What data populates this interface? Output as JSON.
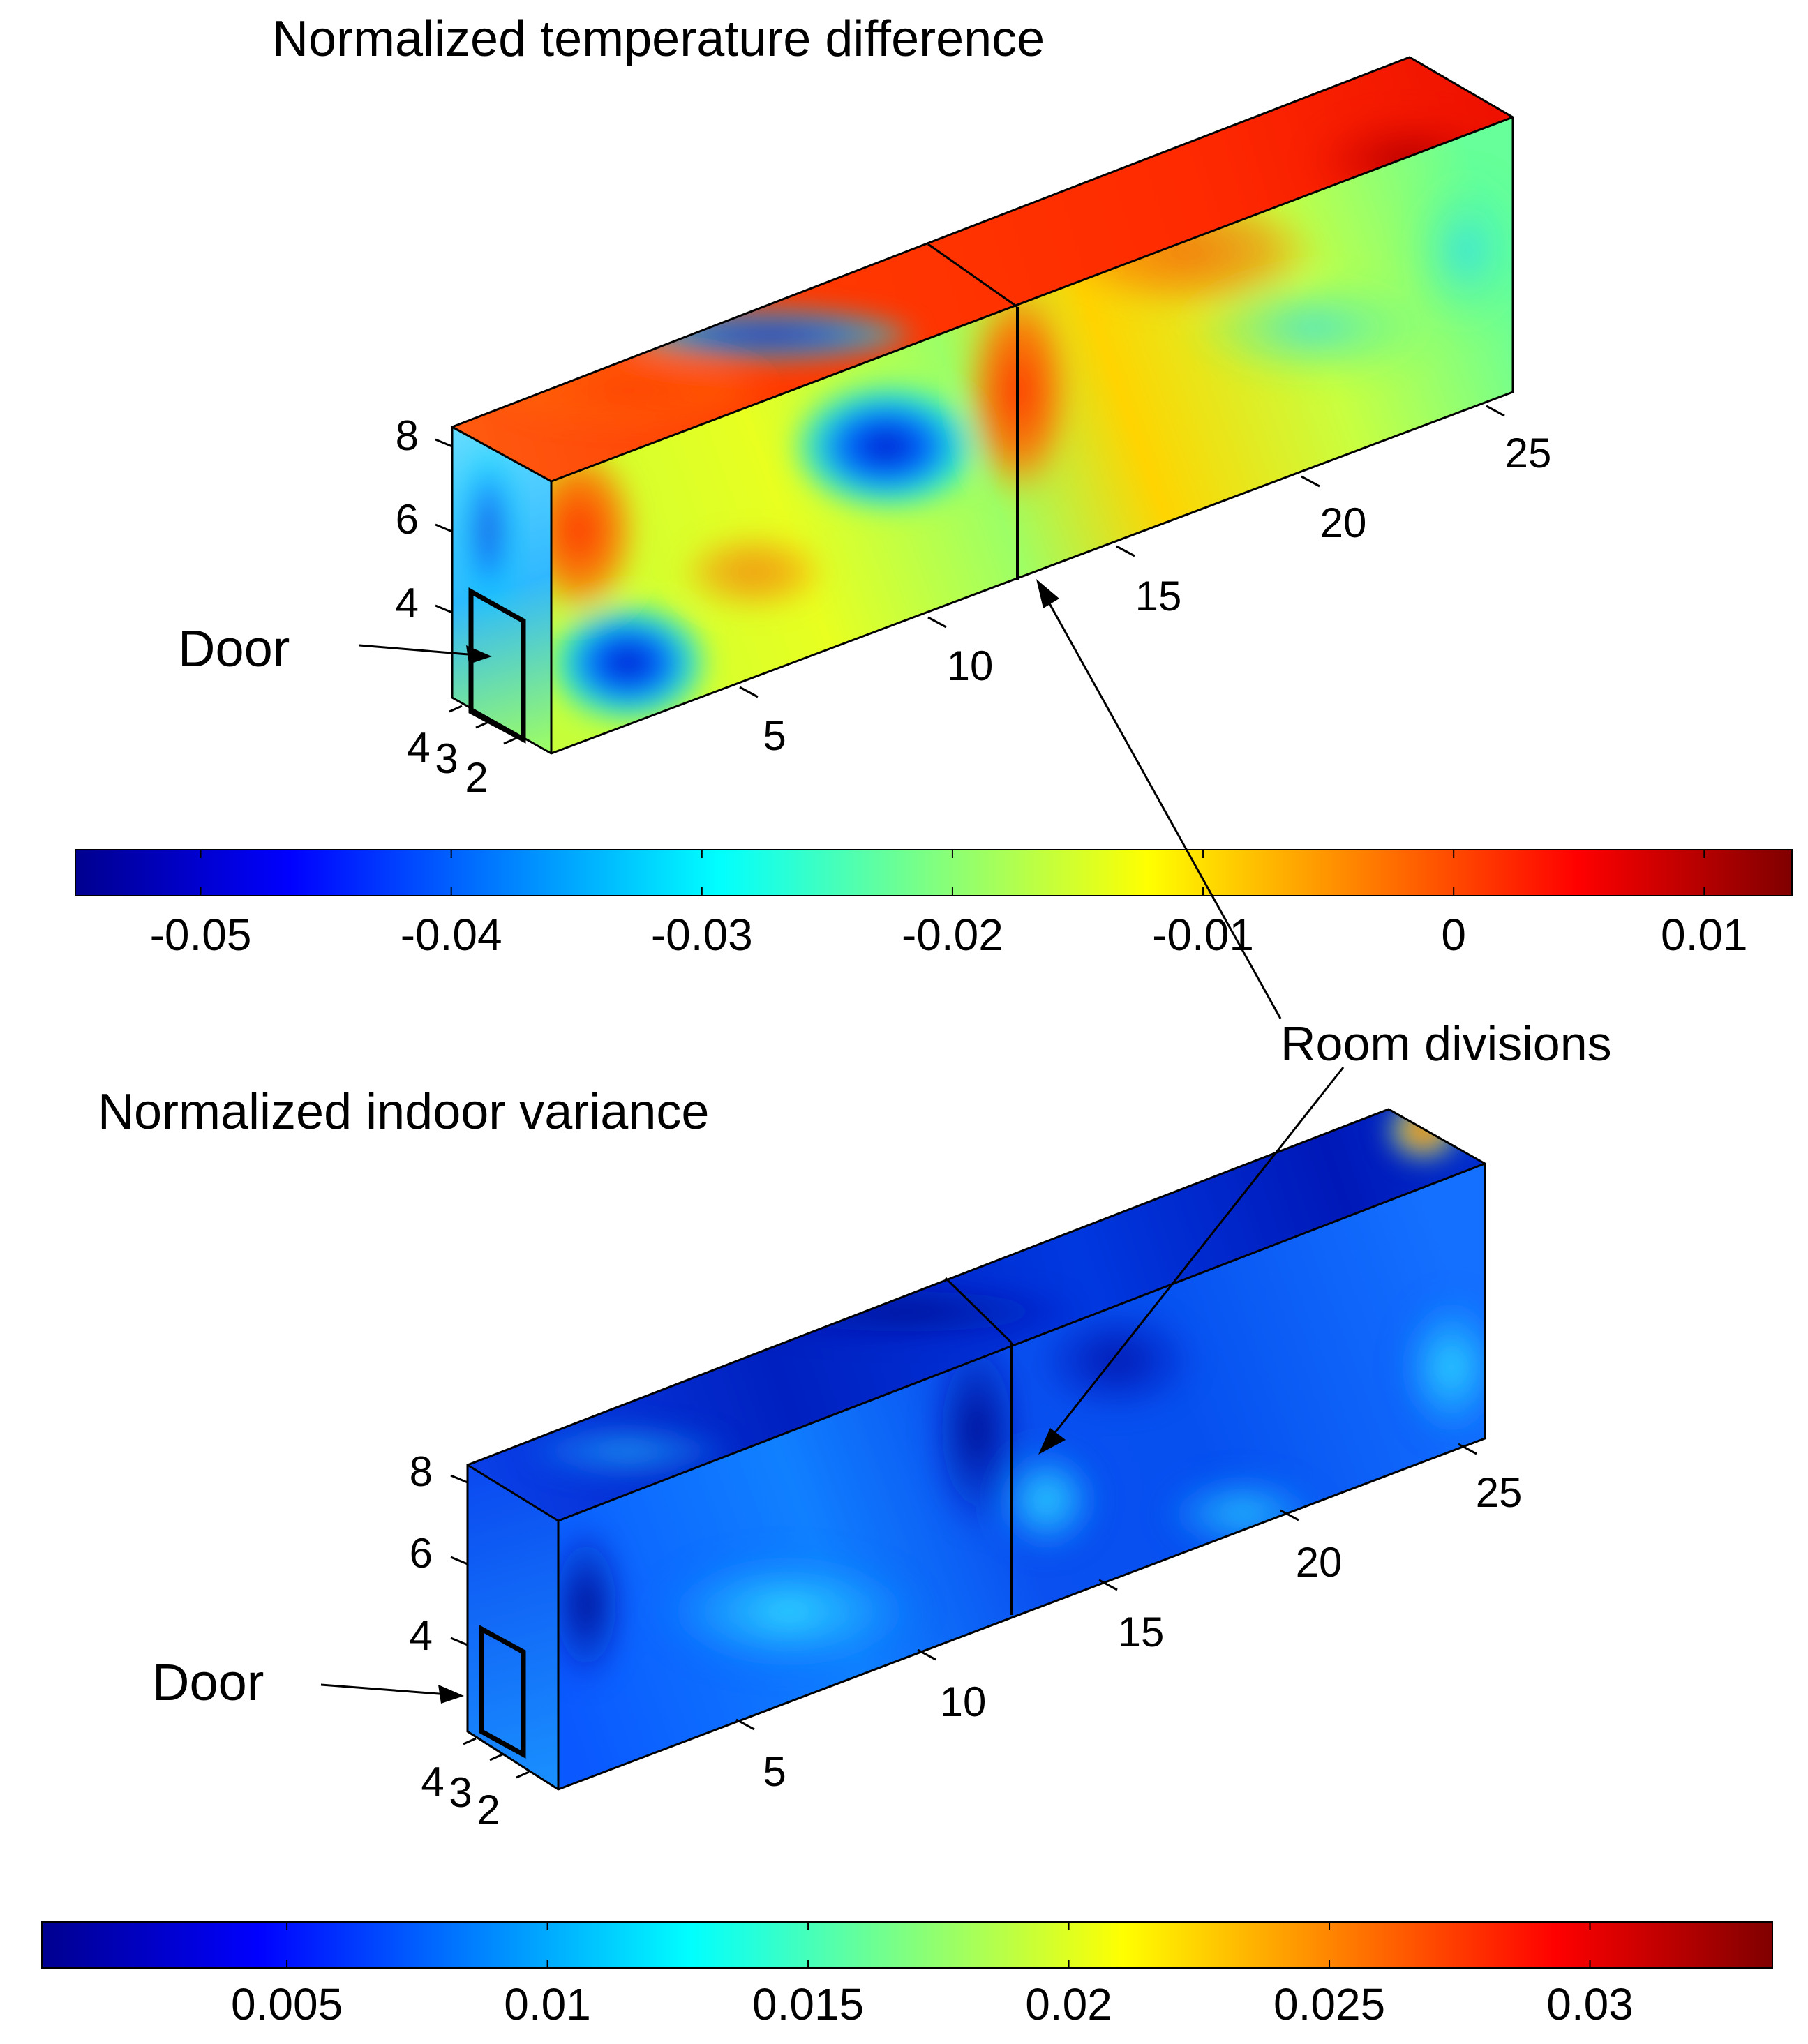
{
  "chart_data": [
    {
      "type": "heatmap",
      "title": "Normalized temperature difference",
      "axes": {
        "length_ticks": [
          "5",
          "10",
          "15",
          "20",
          "25"
        ],
        "height_ticks": [
          "8",
          "6",
          "4"
        ],
        "depth_ticks": [
          "4",
          "3",
          "2"
        ]
      },
      "door_label": "Door",
      "colorbar": {
        "colormap": "jet",
        "min": -0.055,
        "max": 0.0135,
        "ticks": [
          {
            "value": -0.05,
            "label": "-0.05"
          },
          {
            "value": -0.04,
            "label": "-0.04"
          },
          {
            "value": -0.03,
            "label": "-0.03"
          },
          {
            "value": -0.02,
            "label": "-0.02"
          },
          {
            "value": -0.01,
            "label": "-0.01"
          },
          {
            "value": 0,
            "label": "0"
          },
          {
            "value": 0.01,
            "label": "0.01"
          }
        ]
      }
    },
    {
      "type": "heatmap",
      "title": "Normalized indoor variance",
      "axes": {
        "length_ticks": [
          "5",
          "10",
          "15",
          "20",
          "25"
        ],
        "height_ticks": [
          "8",
          "6",
          "4"
        ],
        "depth_ticks": [
          "4",
          "3",
          "2"
        ]
      },
      "door_label": "Door",
      "colorbar": {
        "colormap": "jet",
        "min": 0.0003,
        "max": 0.0335,
        "ticks": [
          {
            "value": 0.005,
            "label": "0.005"
          },
          {
            "value": 0.01,
            "label": "0.01"
          },
          {
            "value": 0.015,
            "label": "0.015"
          },
          {
            "value": 0.02,
            "label": "0.02"
          },
          {
            "value": 0.025,
            "label": "0.025"
          },
          {
            "value": 0.03,
            "label": "0.03"
          }
        ]
      }
    }
  ],
  "annotation": {
    "label": "Room divisions"
  }
}
